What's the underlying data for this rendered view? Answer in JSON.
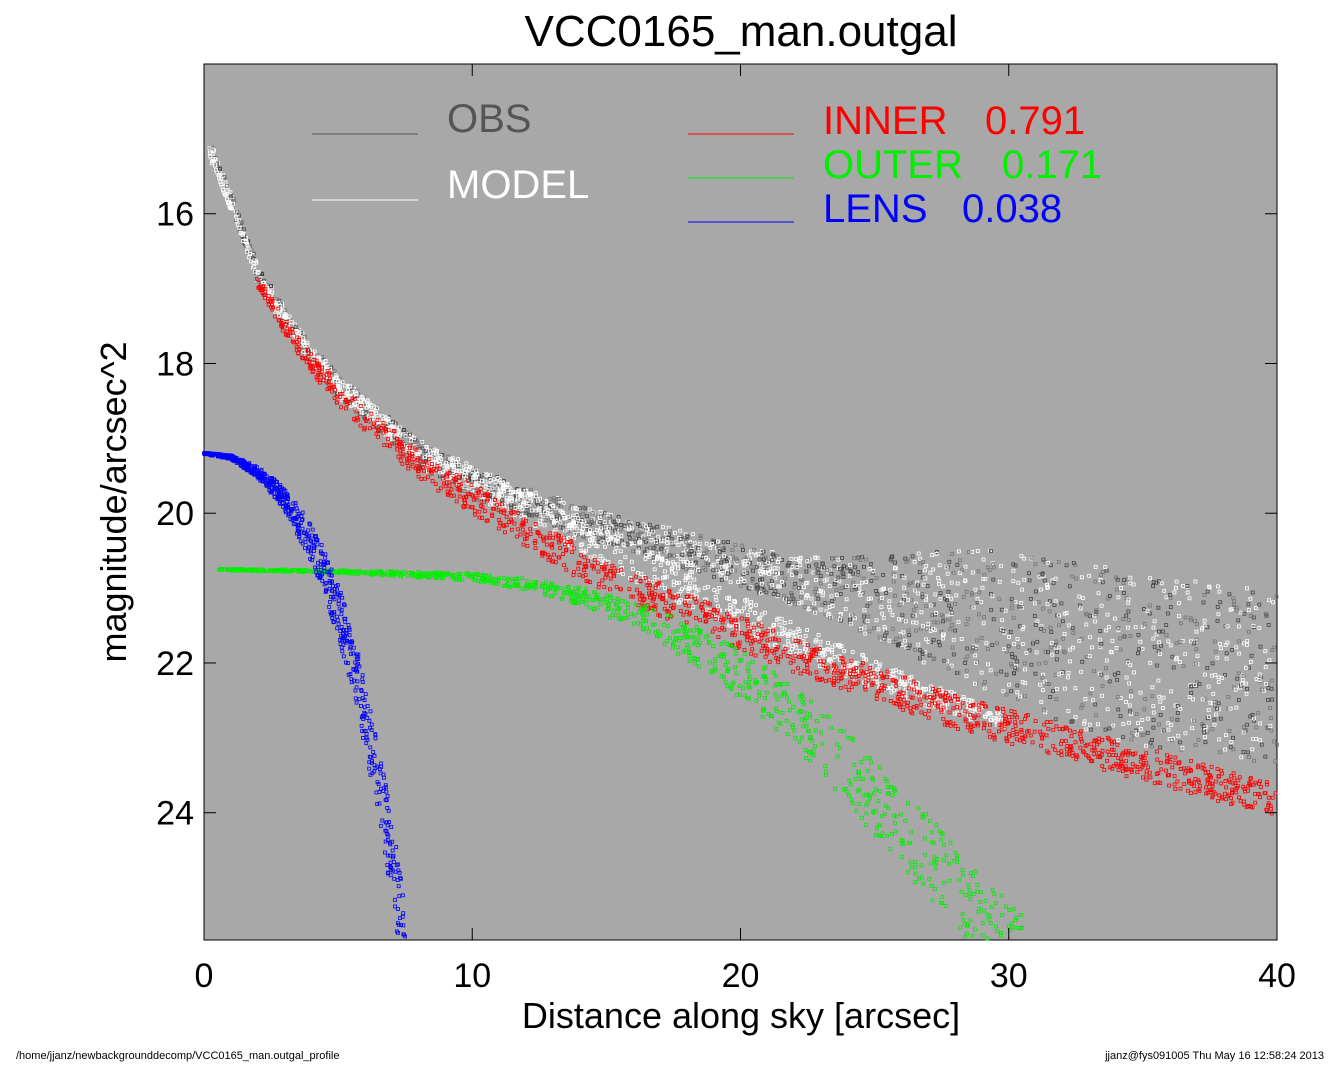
{
  "chart_data": {
    "type": "scatter",
    "title": "VCC0165_man.outgal",
    "xlabel": "Distance along sky [arcsec]",
    "ylabel": "magnitude/arcsec^2",
    "xlim": [
      0,
      40
    ],
    "ylim": [
      25.7,
      14.0
    ],
    "y_inverted": true,
    "x_ticks": [
      0,
      10,
      20,
      30,
      40
    ],
    "y_ticks": [
      16,
      18,
      20,
      22,
      24
    ],
    "background_color": "#a8a8a8",
    "grid": false,
    "legend_placement": "top",
    "legend": [
      {
        "name": "OBS",
        "color": "#555555"
      },
      {
        "name": "MODEL",
        "color": "#ffffff"
      },
      {
        "name": "INNER",
        "value": "0.791",
        "color": "#ff0000"
      },
      {
        "name": "OUTER",
        "value": "0.171",
        "color": "#00ee00"
      },
      {
        "name": "LENS",
        "value": "0.038",
        "color": "#0000ff"
      }
    ],
    "series": [
      {
        "name": "OBS",
        "color": "#555555",
        "x": [
          0.2,
          1,
          2,
          3,
          4,
          5,
          6,
          7,
          8,
          10,
          12,
          14,
          16,
          18,
          20,
          22,
          24,
          26,
          28,
          30,
          32,
          34,
          36,
          38,
          40
        ],
        "y": [
          15.1,
          15.8,
          16.8,
          17.4,
          17.9,
          18.3,
          18.6,
          18.9,
          19.2,
          19.6,
          19.85,
          20.1,
          20.3,
          20.5,
          20.7,
          20.9,
          21.05,
          21.2,
          21.35,
          21.5,
          21.7,
          21.9,
          22.0,
          22.1,
          22.2
        ],
        "y_spread": [
          0.2,
          0.2,
          0.25,
          0.3,
          0.3,
          0.3,
          0.3,
          0.3,
          0.35,
          0.4,
          0.4,
          0.4,
          0.45,
          0.5,
          0.55,
          0.65,
          0.9,
          1.3,
          1.7,
          2.0,
          2.2,
          2.3,
          2.3,
          2.3,
          2.3
        ]
      },
      {
        "name": "MODEL",
        "color": "#ffffff",
        "x": [
          0.2,
          1,
          2,
          3,
          4,
          5,
          6,
          7,
          8,
          10,
          12,
          14,
          16,
          18,
          20,
          22,
          24,
          26,
          28,
          30
        ],
        "y": [
          15.2,
          15.9,
          16.8,
          17.4,
          17.9,
          18.3,
          18.6,
          18.9,
          19.15,
          19.55,
          19.9,
          20.3,
          20.65,
          21.0,
          21.35,
          21.7,
          22.0,
          22.3,
          22.55,
          22.8
        ],
        "y_spread": [
          0.1,
          0.12,
          0.15,
          0.18,
          0.2,
          0.22,
          0.24,
          0.26,
          0.3,
          0.35,
          0.4,
          0.45,
          0.5,
          0.5,
          0.5,
          0.45,
          0.4,
          0.35,
          0.3,
          0.2
        ]
      },
      {
        "name": "INNER",
        "color": "#ff0000",
        "x": [
          2,
          3,
          4,
          5,
          6,
          7,
          8,
          10,
          12,
          14,
          16,
          18,
          20,
          22,
          24,
          26,
          28,
          30,
          32,
          34,
          36,
          38,
          40
        ],
        "y": [
          16.9,
          17.5,
          18.0,
          18.4,
          18.75,
          19.05,
          19.35,
          19.8,
          20.25,
          20.65,
          21.0,
          21.3,
          21.6,
          21.9,
          22.15,
          22.4,
          22.65,
          22.85,
          23.05,
          23.25,
          23.45,
          23.65,
          23.85
        ],
        "y_spread": [
          0.15,
          0.2,
          0.25,
          0.3,
          0.3,
          0.35,
          0.35,
          0.4,
          0.4,
          0.45,
          0.45,
          0.45,
          0.45,
          0.45,
          0.45,
          0.45,
          0.45,
          0.45,
          0.45,
          0.45,
          0.45,
          0.45,
          0.45
        ]
      },
      {
        "name": "OUTER",
        "color": "#00ee00",
        "x": [
          0.5,
          5,
          10,
          12,
          14,
          16,
          18,
          20,
          22,
          24,
          25,
          26,
          27,
          28,
          29,
          30.5
        ],
        "y": [
          20.75,
          20.78,
          20.85,
          20.95,
          21.1,
          21.35,
          21.7,
          22.15,
          22.7,
          23.4,
          23.8,
          24.2,
          24.6,
          25.0,
          25.4,
          25.9
        ],
        "y_spread": [
          0.02,
          0.04,
          0.1,
          0.15,
          0.25,
          0.35,
          0.5,
          0.65,
          0.8,
          0.95,
          1.0,
          1.05,
          1.1,
          1.1,
          1.1,
          1.1
        ]
      },
      {
        "name": "LENS",
        "color": "#0000ff",
        "x": [
          0,
          1,
          2,
          3,
          4,
          4.5,
          5,
          5.5,
          6,
          6.5,
          7,
          7.5
        ],
        "y": [
          19.2,
          19.25,
          19.45,
          19.8,
          20.4,
          20.8,
          21.3,
          21.9,
          22.7,
          23.6,
          24.6,
          25.7
        ],
        "y_spread": [
          0.02,
          0.05,
          0.15,
          0.3,
          0.5,
          0.6,
          0.7,
          0.8,
          0.9,
          1.0,
          1.1,
          1.2
        ]
      }
    ]
  },
  "footer": {
    "left": "/home/jjanz/newbackgrounddecomp/VCC0165_man.outgal_profile",
    "right": "jjanz@fys091005  Thu May 16 12:58:24 2013"
  }
}
